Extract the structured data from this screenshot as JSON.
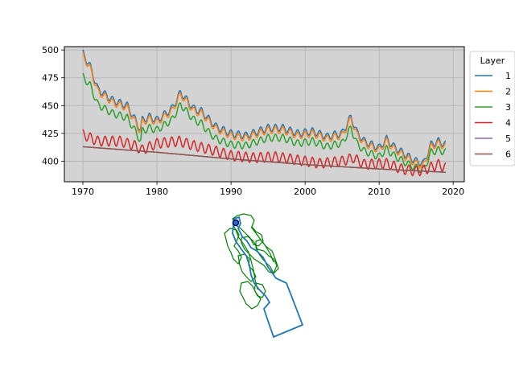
{
  "chart_data": [
    {
      "type": "line",
      "title": "",
      "xlabel": "",
      "ylabel": "",
      "xlim": [
        1967.5,
        2021.5
      ],
      "ylim": [
        381.5,
        503
      ],
      "xticks": [
        1970,
        1980,
        1990,
        2000,
        2010,
        2020
      ],
      "yticks": [
        400,
        425,
        450,
        475,
        500
      ],
      "grid": true,
      "background": "#d3d3d3",
      "legend": {
        "title": "Layer",
        "placement": "outside-right"
      },
      "x_range": [
        1970,
        2019
      ],
      "seasonal_amplitude": [
        0.0,
        3.2,
        3.2,
        3.2,
        4.5,
        0.0,
        0.0
      ],
      "series": [
        {
          "name": "1",
          "color": "#1f77b4",
          "x": [
            1970,
            1971,
            1972,
            1974,
            1976,
            1977,
            1977.8,
            1978,
            1979,
            1980,
            1982,
            1983.2,
            1985,
            1986,
            1987,
            1988,
            1990,
            1992,
            1995,
            1997,
            1999,
            2001,
            2003,
            2004,
            2005,
            2006.2,
            2007,
            2008,
            2010,
            2011,
            2012,
            2014,
            2015,
            2016,
            2017,
            2018,
            2019
          ],
          "y": [
            497,
            485,
            465,
            455,
            450,
            438,
            428,
            437,
            440,
            437,
            447,
            462,
            447,
            445,
            438,
            431,
            425,
            423,
            430,
            430,
            425,
            427,
            422,
            424,
            425,
            440,
            426,
            418,
            412,
            420,
            413,
            404,
            400,
            398,
            415,
            418,
            415
          ]
        },
        {
          "name": "2",
          "color": "#ff7f0e",
          "x": [
            1970,
            1971,
            1972,
            1974,
            1976,
            1977,
            1977.8,
            1978,
            1979,
            1980,
            1982,
            1983.2,
            1985,
            1986,
            1987,
            1988,
            1990,
            1992,
            1995,
            1997,
            1999,
            2001,
            2003,
            2004,
            2005,
            2006.2,
            2007,
            2008,
            2010,
            2011,
            2012,
            2014,
            2015,
            2016,
            2017,
            2018,
            2019
          ],
          "y": [
            495,
            483,
            463,
            453,
            448,
            436,
            426,
            435,
            438,
            435,
            445,
            460,
            445,
            443,
            436,
            429,
            423,
            421,
            428,
            428,
            423,
            425,
            420,
            422,
            423,
            438,
            424,
            416,
            410,
            418,
            411,
            402,
            398,
            396,
            413,
            416,
            413
          ]
        },
        {
          "name": "3",
          "color": "#2ca02c",
          "x": [
            1970,
            1971,
            1972,
            1974,
            1976,
            1977,
            1977.8,
            1978,
            1979,
            1980,
            1982,
            1983.2,
            1985,
            1986,
            1987,
            1988,
            1990,
            1992,
            1995,
            1997,
            1999,
            2001,
            2003,
            2004,
            2005,
            2006.2,
            2007,
            2008,
            2010,
            2011,
            2012,
            2014,
            2015,
            2016,
            2017,
            2018,
            2019
          ],
          "y": [
            476,
            468,
            451,
            443,
            439,
            428,
            418,
            427,
            430,
            428,
            437,
            451,
            437,
            434,
            426,
            420,
            415,
            414,
            421,
            421,
            416,
            418,
            413,
            415,
            416,
            430,
            416,
            409,
            404,
            411,
            405,
            397,
            394,
            392,
            408,
            410,
            408
          ]
        },
        {
          "name": "4",
          "color": "#d62728",
          "x": [
            1970,
            1972,
            1975,
            1977,
            1978,
            1980,
            1983,
            1985,
            1988,
            1990,
            1993,
            1996,
            1999,
            2002,
            2005,
            2006.5,
            2008,
            2011,
            2013,
            2015,
            2016,
            2018,
            2019
          ],
          "y": [
            424,
            418,
            418,
            414,
            410,
            416,
            418,
            414,
            409,
            405,
            403,
            404,
            401,
            398,
            400,
            403,
            397,
            398,
            393,
            391,
            392,
            397,
            394
          ]
        },
        {
          "name": "5",
          "color": "#9467bd",
          "x": [
            1970,
            1980,
            1990,
            2000,
            2010,
            2019
          ],
          "y": [
            413,
            408,
            402,
            397,
            393,
            390
          ]
        },
        {
          "name": "6",
          "color": "#8c564b",
          "x": [
            1970,
            1980,
            1990,
            2000,
            2010,
            2019
          ],
          "y": [
            413,
            408,
            402,
            397,
            393,
            390
          ]
        }
      ]
    },
    {
      "type": "map",
      "title": "",
      "boundary_color": "#1f77b4",
      "feature_color": "#008000",
      "marker_color": "#000080"
    }
  ]
}
